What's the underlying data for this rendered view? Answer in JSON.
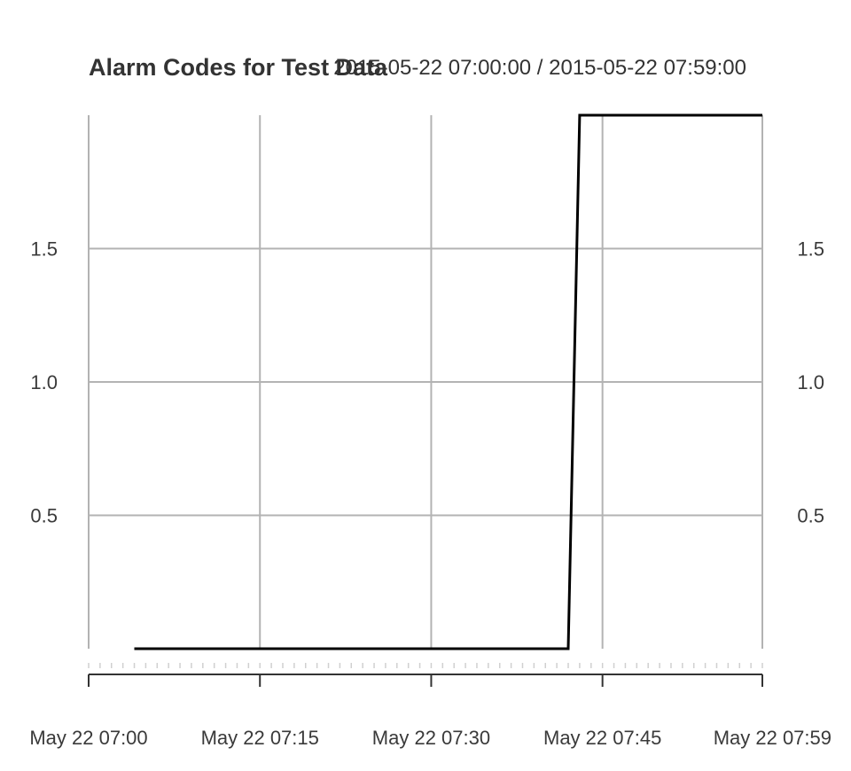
{
  "chart_data": {
    "type": "line",
    "title": "Alarm Codes for Test Data",
    "date_range": "2015-05-22 07:00:00 / 2015-05-22 07:59:00",
    "x_tick_labels": [
      "May 22 07:00",
      "May 22 07:15",
      "May 22 07:30",
      "May 22 07:45",
      "May 22 07:59"
    ],
    "x_ticks": [
      "2015-05-22 07:00",
      "2015-05-22 07:15",
      "2015-05-22 07:30",
      "2015-05-22 07:45",
      "2015-05-22 07:59"
    ],
    "xlim": [
      "2015-05-22 07:00",
      "2015-05-22 07:59"
    ],
    "y_tick_labels": [
      "0.5",
      "1.0",
      "1.5"
    ],
    "y_ticks": [
      0.5,
      1.0,
      1.5
    ],
    "ylim": [
      0,
      2
    ],
    "grid": true,
    "series": [
      {
        "x": [
          "2015-05-22 07:04",
          "2015-05-22 07:42",
          "2015-05-22 07:43",
          "2015-05-22 07:59"
        ],
        "y": [
          0,
          0,
          2,
          2
        ]
      }
    ]
  }
}
